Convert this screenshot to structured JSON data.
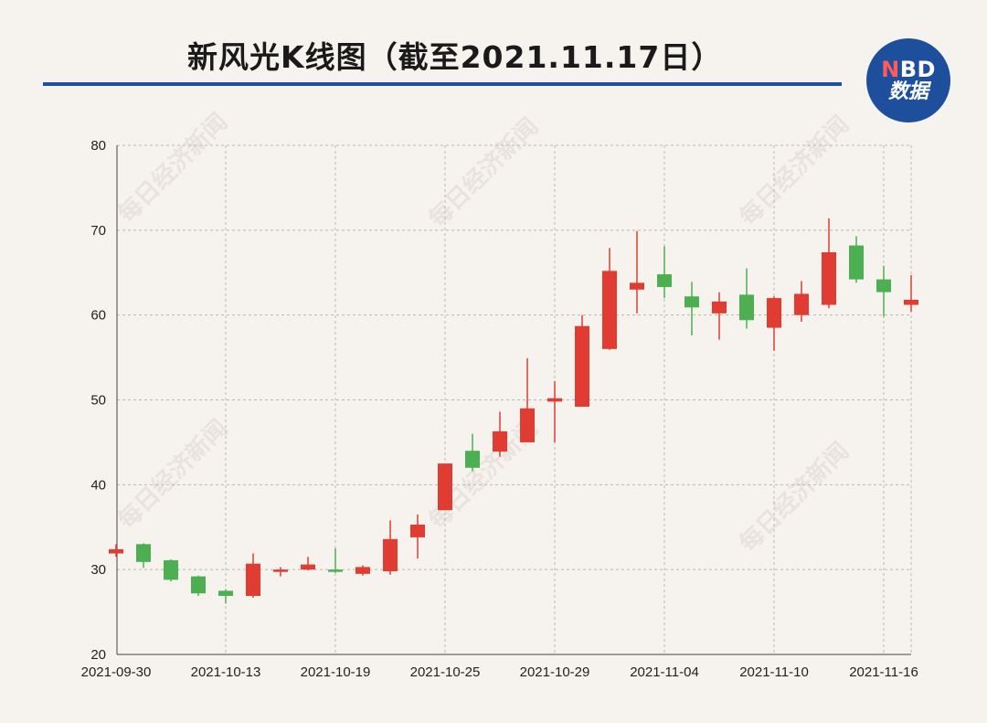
{
  "header": {
    "title": "新风光K线图（截至2021.11.17日）",
    "logo_top_n": "N",
    "logo_top_rest": "BD",
    "logo_bottom": "数据"
  },
  "watermark_text": "每日经济新闻",
  "colors": {
    "up": "#e03c31",
    "down": "#4caf50",
    "brand": "#1f4fa3",
    "grid": "#b8b8b8"
  },
  "chart_data": {
    "type": "candlestick",
    "title": "新风光K线图（截至2021.11.17日）",
    "xlabel": "",
    "ylabel": "",
    "ylim": [
      20,
      80
    ],
    "yticks": [
      20,
      30,
      40,
      50,
      60,
      70,
      80
    ],
    "grid": true,
    "x_ticks": [
      {
        "index": 0,
        "label": "2021-09-30"
      },
      {
        "index": 4,
        "label": "2021-10-13"
      },
      {
        "index": 8,
        "label": "2021-10-19"
      },
      {
        "index": 12,
        "label": "2021-10-25"
      },
      {
        "index": 16,
        "label": "2021-10-29"
      },
      {
        "index": 20,
        "label": "2021-11-04"
      },
      {
        "index": 24,
        "label": "2021-11-10"
      },
      {
        "index": 28,
        "label": "2021-11-16"
      }
    ],
    "candles": [
      {
        "open": 31.9,
        "high": 33.0,
        "low": 31.5,
        "close": 32.4
      },
      {
        "open": 33.0,
        "high": 33.1,
        "low": 30.2,
        "close": 30.9
      },
      {
        "open": 31.1,
        "high": 31.2,
        "low": 28.6,
        "close": 28.8
      },
      {
        "open": 29.2,
        "high": 29.3,
        "low": 26.9,
        "close": 27.2
      },
      {
        "open": 27.5,
        "high": 27.7,
        "low": 26.0,
        "close": 26.9
      },
      {
        "open": 26.9,
        "high": 31.9,
        "low": 26.7,
        "close": 30.7
      },
      {
        "open": 29.8,
        "high": 30.3,
        "low": 29.2,
        "close": 30.0
      },
      {
        "open": 30.0,
        "high": 31.5,
        "low": 29.9,
        "close": 30.6
      },
      {
        "open": 30.0,
        "high": 32.5,
        "low": 29.6,
        "close": 29.8
      },
      {
        "open": 29.5,
        "high": 30.5,
        "low": 29.3,
        "close": 30.3
      },
      {
        "open": 29.8,
        "high": 35.8,
        "low": 29.4,
        "close": 33.6
      },
      {
        "open": 33.8,
        "high": 36.5,
        "low": 31.3,
        "close": 35.3
      },
      {
        "open": 37.0,
        "high": 42.5,
        "low": 37.0,
        "close": 42.5
      },
      {
        "open": 44.0,
        "high": 46.0,
        "low": 41.6,
        "close": 42.0
      },
      {
        "open": 43.9,
        "high": 48.6,
        "low": 43.3,
        "close": 46.3
      },
      {
        "open": 45.0,
        "high": 54.9,
        "low": 45.0,
        "close": 49.0
      },
      {
        "open": 49.8,
        "high": 52.2,
        "low": 45.0,
        "close": 50.2
      },
      {
        "open": 49.2,
        "high": 60.0,
        "low": 49.2,
        "close": 58.7
      },
      {
        "open": 56.0,
        "high": 67.9,
        "low": 55.9,
        "close": 65.2
      },
      {
        "open": 63.0,
        "high": 69.9,
        "low": 60.2,
        "close": 63.8
      },
      {
        "open": 64.8,
        "high": 68.1,
        "low": 62.0,
        "close": 63.3
      },
      {
        "open": 62.2,
        "high": 63.9,
        "low": 57.6,
        "close": 60.9
      },
      {
        "open": 60.2,
        "high": 62.7,
        "low": 57.1,
        "close": 61.6
      },
      {
        "open": 62.4,
        "high": 65.5,
        "low": 58.4,
        "close": 59.4
      },
      {
        "open": 58.5,
        "high": 62.2,
        "low": 55.8,
        "close": 62.0
      },
      {
        "open": 60.0,
        "high": 64.0,
        "low": 59.2,
        "close": 62.5
      },
      {
        "open": 61.2,
        "high": 71.4,
        "low": 60.8,
        "close": 67.4
      },
      {
        "open": 68.2,
        "high": 69.3,
        "low": 63.8,
        "close": 64.2
      },
      {
        "open": 64.2,
        "high": 65.8,
        "low": 59.8,
        "close": 62.7
      },
      {
        "open": 61.2,
        "high": 64.7,
        "low": 60.4,
        "close": 61.8
      }
    ]
  }
}
